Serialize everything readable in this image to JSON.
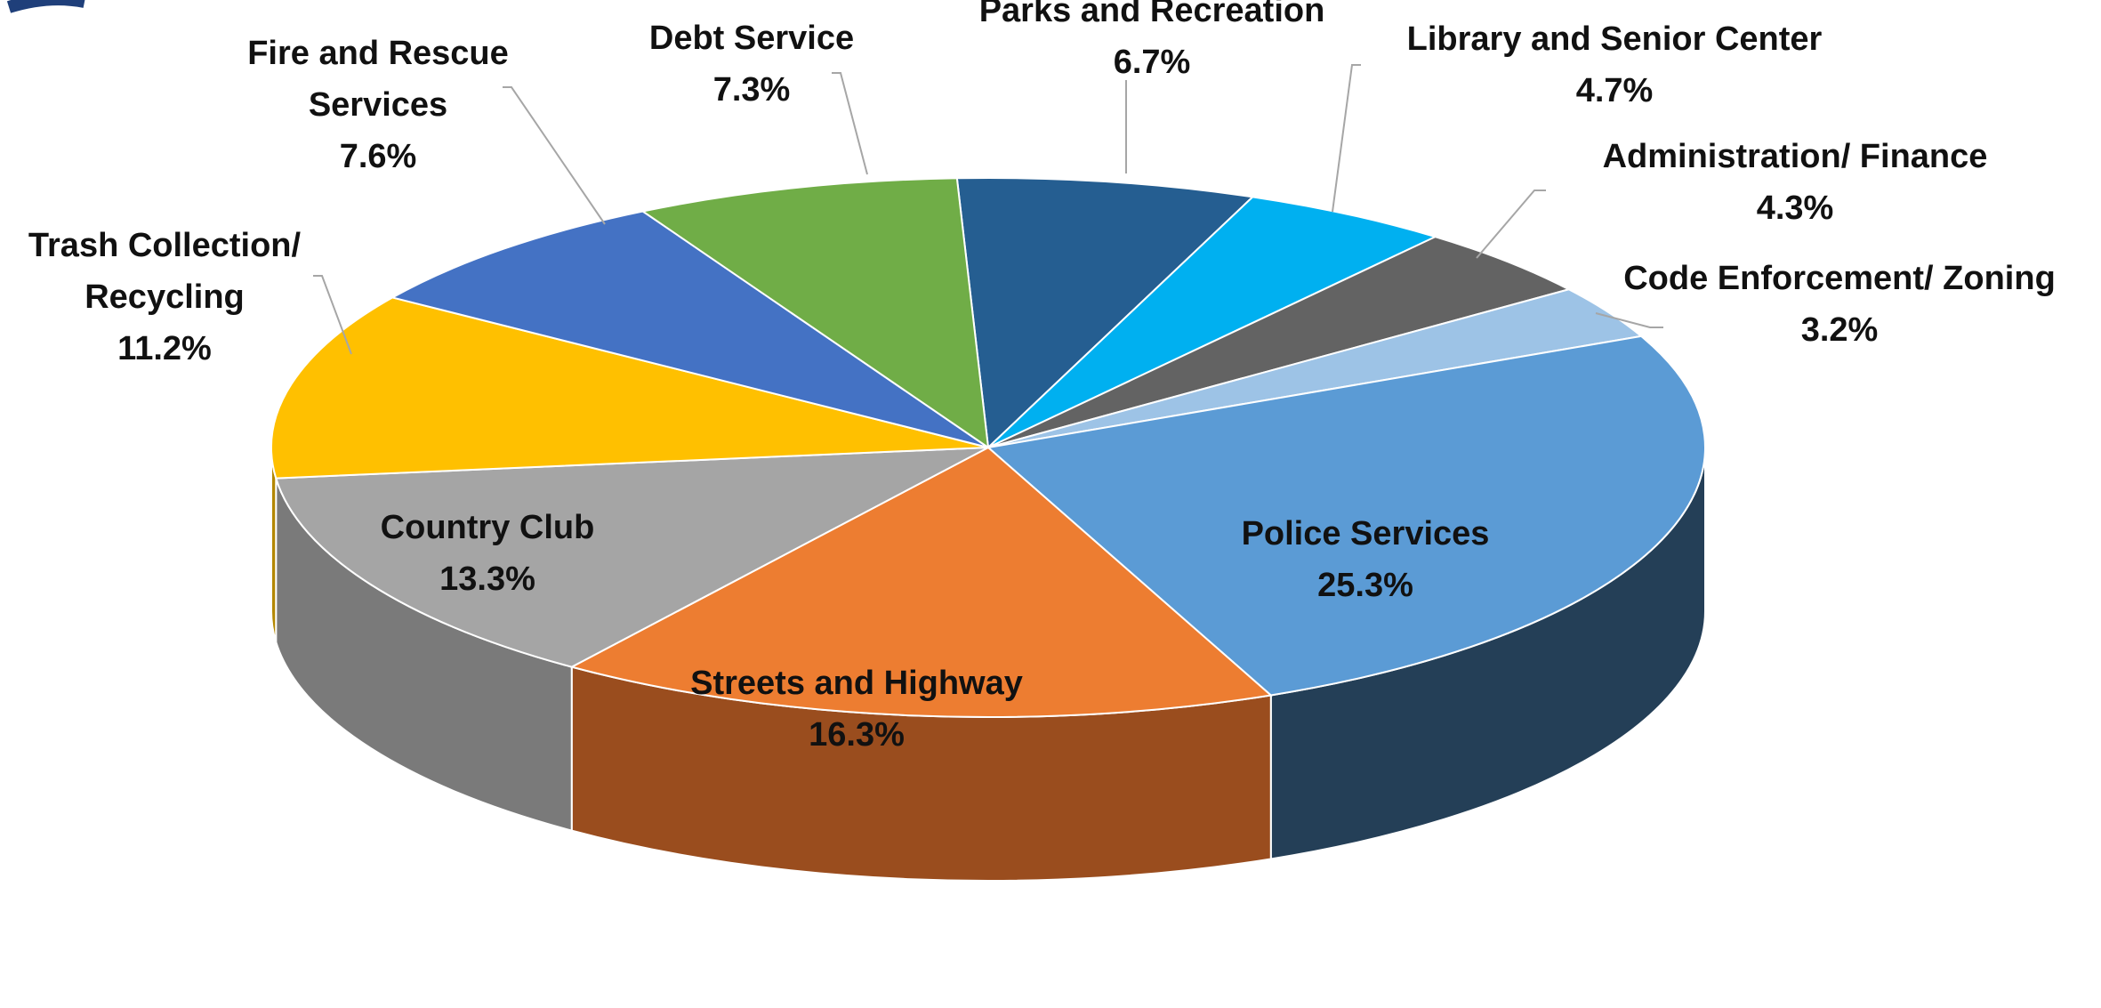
{
  "chart_data": {
    "type": "pie",
    "title": "",
    "start_angle_deg": -92.5,
    "direction": "clockwise",
    "slices": [
      {
        "label": "Parks and Recreation",
        "value_label": "6.7%",
        "value": 6.7,
        "color": "#255e91",
        "side_color": "#173a5a",
        "label_style": "callout"
      },
      {
        "label": "Library and Senior Center",
        "value_label": "4.7%",
        "value": 4.7,
        "color": "#00b0f0",
        "side_color": "#006d96",
        "label_style": "callout"
      },
      {
        "label": "Administration/ Finance",
        "value_label": "4.3%",
        "value": 4.3,
        "color": "#636363",
        "side_color": "#3c3c3c",
        "label_style": "callout"
      },
      {
        "label": "Code Enforcement/ Zoning",
        "value_label": "3.2%",
        "value": 3.2,
        "color": "#9dc3e6",
        "side_color": "#6a8fb0",
        "label_style": "callout"
      },
      {
        "label": "Police Services",
        "value_label": "25.3%",
        "value": 25.3,
        "color": "#5b9bd5",
        "side_color": "#243f57",
        "label_style": "inside"
      },
      {
        "label": "Streets and Highway",
        "value_label": "16.3%",
        "value": 16.3,
        "color": "#ed7d31",
        "side_color": "#9a4d1e",
        "label_style": "inside"
      },
      {
        "label": "Country Club",
        "value_label": "13.3%",
        "value": 13.3,
        "color": "#a5a5a5",
        "side_color": "#7a7a7a",
        "label_style": "inside"
      },
      {
        "label": "Trash Collection/ Recycling",
        "value_label": "11.2%",
        "value": 11.2,
        "color": "#ffc000",
        "side_color": "#b38700",
        "label_style": "callout"
      },
      {
        "label": "Fire and Rescue Services",
        "value_label": "7.6%",
        "value": 7.6,
        "color": "#4472c4",
        "side_color": "#2c4b82",
        "label_style": "callout"
      },
      {
        "label": "Debt Service",
        "value_label": "7.3%",
        "value": 7.3,
        "color": "#70ad47",
        "side_color": "#4a742f",
        "label_style": "callout"
      }
    ]
  }
}
